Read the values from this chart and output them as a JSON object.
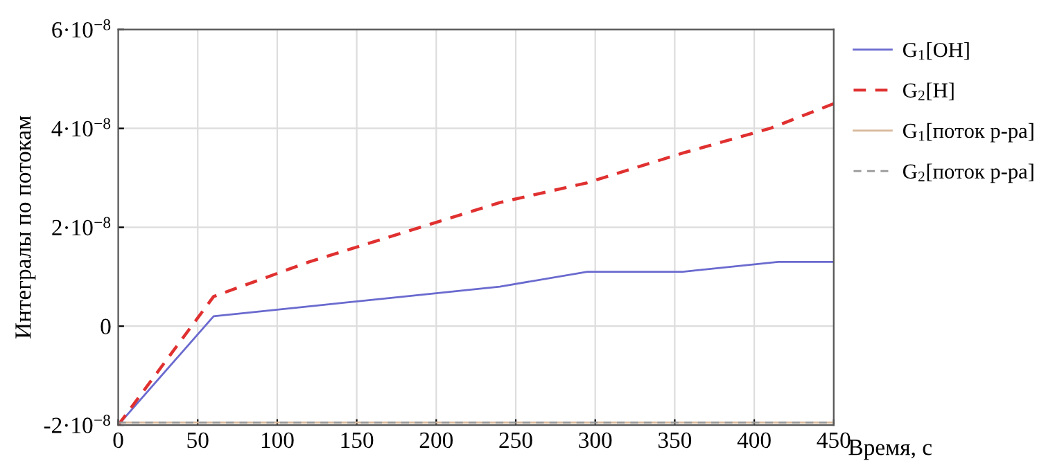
{
  "chart_data": {
    "type": "line",
    "xlabel": "Время, с",
    "ylabel": "Интегралы по потокам",
    "xlim": [
      0,
      450
    ],
    "xticks": [
      0,
      50,
      100,
      150,
      200,
      250,
      300,
      350,
      400,
      450
    ],
    "ylim": [
      -2e-08,
      6e-08
    ],
    "yticks": [
      {
        "value": -2e-08,
        "label": "-2·10$^{−8}$"
      },
      {
        "value": 0,
        "label": "0"
      },
      {
        "value": 2e-08,
        "label": "2·10$^{−8}$"
      },
      {
        "value": 4e-08,
        "label": "4·10$^{−8}$"
      },
      {
        "value": 6e-08,
        "label": "6·10$^{−8}$"
      }
    ],
    "grid": true,
    "legend": "right",
    "series": [
      {
        "name": "G$_{1}$[OH]",
        "color": "#6a6acf",
        "line_style": "solid",
        "x": [
          0,
          60,
          120,
          180,
          240,
          295,
          355,
          415,
          450
        ],
        "values": [
          -2e-08,
          2e-09,
          4e-09,
          6e-09,
          8e-09,
          1.1e-08,
          1.1e-08,
          1.3e-08,
          1.3e-08
        ]
      },
      {
        "name": "G$_{2}$[H]",
        "color": "#e03030",
        "line_style": "dashed",
        "x": [
          0,
          60,
          120,
          180,
          240,
          295,
          355,
          410,
          450
        ],
        "values": [
          -2e-08,
          6e-09,
          1.3e-08,
          1.9e-08,
          2.5e-08,
          2.9e-08,
          3.5e-08,
          4e-08,
          4.5e-08
        ]
      },
      {
        "name": "G$_{1}$[поток р-ра]",
        "color": "#d8b89a",
        "line_style": "solid",
        "x": [
          0,
          450
        ],
        "values": [
          -1.95e-08,
          -1.95e-08
        ]
      },
      {
        "name": "G$_{2}$[поток р-ра]",
        "color": "#999999",
        "line_style": "dashed",
        "x": [
          0,
          450
        ],
        "values": [
          -1.95e-08,
          -1.95e-08
        ]
      }
    ]
  }
}
